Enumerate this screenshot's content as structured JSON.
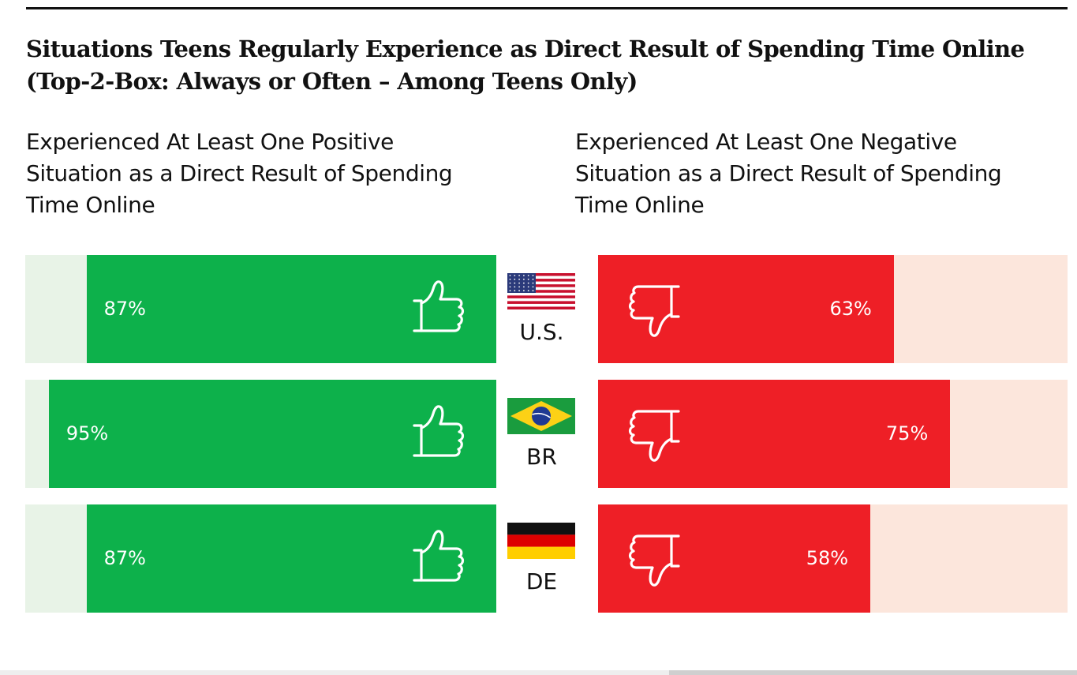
{
  "title": {
    "line1": "Situations Teens Regularly Experience as Direct Result of Spending Time Online",
    "line2": "(Top-2-Box: Always or Often – Among Teens Only)"
  },
  "left_header": {
    "line1": "Experienced At Least One Positive",
    "line2": "Situation as a Direct Result of Spending",
    "line3": "Time Online"
  },
  "right_header": {
    "line1": "Experienced At Least One Negative",
    "line2": "Situation as a Direct Result of Spending",
    "line3": "Time Online"
  },
  "colors": {
    "positive": "#0db14b",
    "positive_track": "#e8f3e7",
    "negative": "#ee1f26",
    "negative_track": "#fce6dc"
  },
  "icons": {
    "positive": "thumbs-up-icon",
    "negative": "thumbs-down-icon"
  },
  "chart_data": {
    "type": "bar",
    "categories": [
      "U.S.",
      "BR",
      "DE"
    ],
    "flags": [
      "us-flag-icon",
      "brazil-flag-icon",
      "germany-flag-icon"
    ],
    "series": [
      {
        "values": [
          87,
          95,
          87
        ],
        "labels": [
          "87%",
          "95%",
          "87%"
        ]
      },
      {
        "values": [
          63,
          75,
          58
        ],
        "labels": [
          "63%",
          "75%",
          "58%"
        ]
      }
    ],
    "ylim": [
      0,
      100
    ]
  }
}
